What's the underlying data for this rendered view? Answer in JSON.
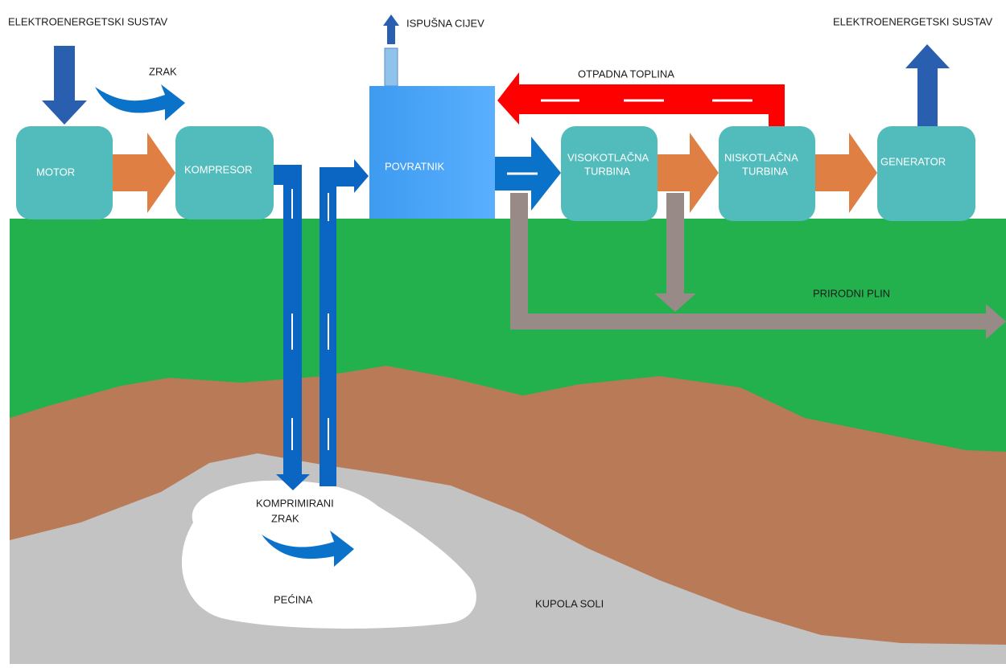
{
  "labels": {
    "power_left": "ELEKTROENERGETSKI SUSTAV",
    "air": "ZRAK",
    "exhaust": "ISPUŠNA CIJEV",
    "power_right": "ELEKTROENERGETSKI SUSTAV",
    "waste_heat": "OTPADNA TOPLINA",
    "natural_gas": "PRIRODNI PLIN",
    "compressed_air": [
      "KOMPRIMIRANI",
      "ZRAK"
    ],
    "cave": "PEĆINA",
    "salt_dome": "KUPOLA SOLI"
  },
  "nodes": [
    {
      "label": [
        "MOTOR"
      ]
    },
    {
      "label": [
        "KOMPRESOR"
      ]
    },
    {
      "label": [
        "POVRATNIK"
      ]
    },
    {
      "label": [
        "VISOKOTLAČNA",
        "TURBINA"
      ]
    },
    {
      "label": [
        "NISKOTLAČNA",
        "TURBINA"
      ]
    },
    {
      "label": [
        "GENERATOR"
      ]
    }
  ]
}
